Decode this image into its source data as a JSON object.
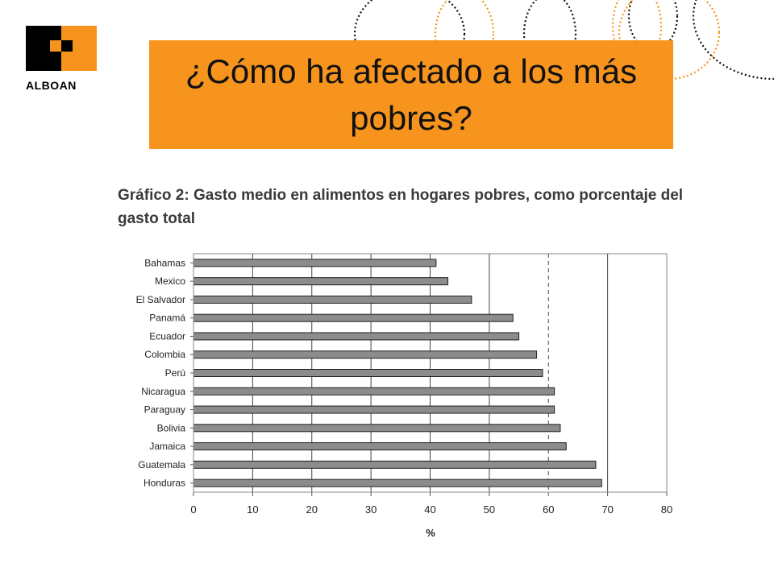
{
  "brand": {
    "name": "ALBOAN",
    "colors": {
      "orange": "#f7941d",
      "black": "#000000"
    }
  },
  "slide": {
    "title": "¿Cómo ha afectado a los más pobres?"
  },
  "chart_heading": "Gráfico 2: Gasto medio en alimentos en hogares pobres, como porcentaje del gasto total",
  "chart_data": {
    "type": "bar",
    "orientation": "horizontal",
    "title": "Gráfico 2: Gasto medio en alimentos en hogares pobres, como porcentaje del gasto total",
    "categories": [
      "Bahamas",
      "Mexico",
      "El Salvador",
      "Panamá",
      "Ecuador",
      "Colombia",
      "Perú",
      "Nicaragua",
      "Paraguay",
      "Bolivia",
      "Jamaica",
      "Guatemala",
      "Honduras"
    ],
    "values": [
      41,
      43,
      47,
      54,
      55,
      58,
      59,
      61,
      61,
      62,
      63,
      68,
      69
    ],
    "xlabel": "%",
    "ylabel": "",
    "xlim": [
      0,
      80
    ],
    "ticks": [
      "0",
      "10",
      "20",
      "30",
      "40",
      "50",
      "60",
      "70",
      "80"
    ],
    "grid": "vertical",
    "bar_color": "#8c8c8c",
    "legend": "none"
  }
}
